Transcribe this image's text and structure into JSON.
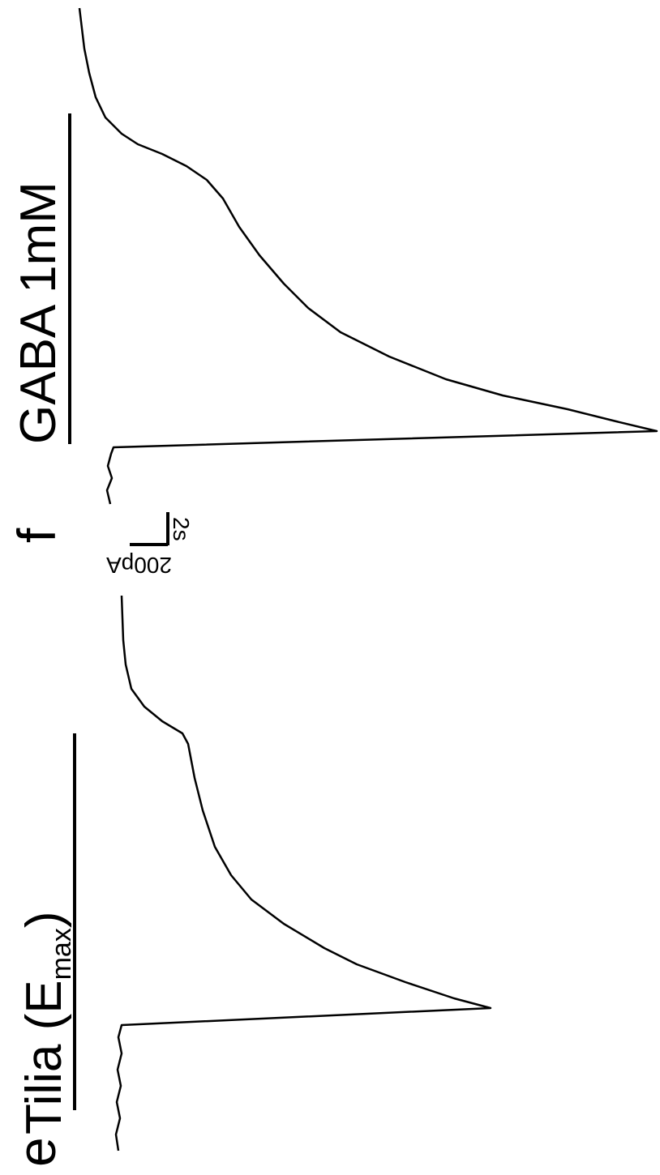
{
  "panels": [
    {
      "label": "e",
      "treatment": {
        "text": "Tilia (E",
        "subscript": "max",
        "close": ")"
      }
    },
    {
      "label": "f",
      "treatment": {
        "text": "GABA 1mM"
      }
    }
  ],
  "scale_bar": {
    "current": "200pA",
    "time": "2s"
  }
}
